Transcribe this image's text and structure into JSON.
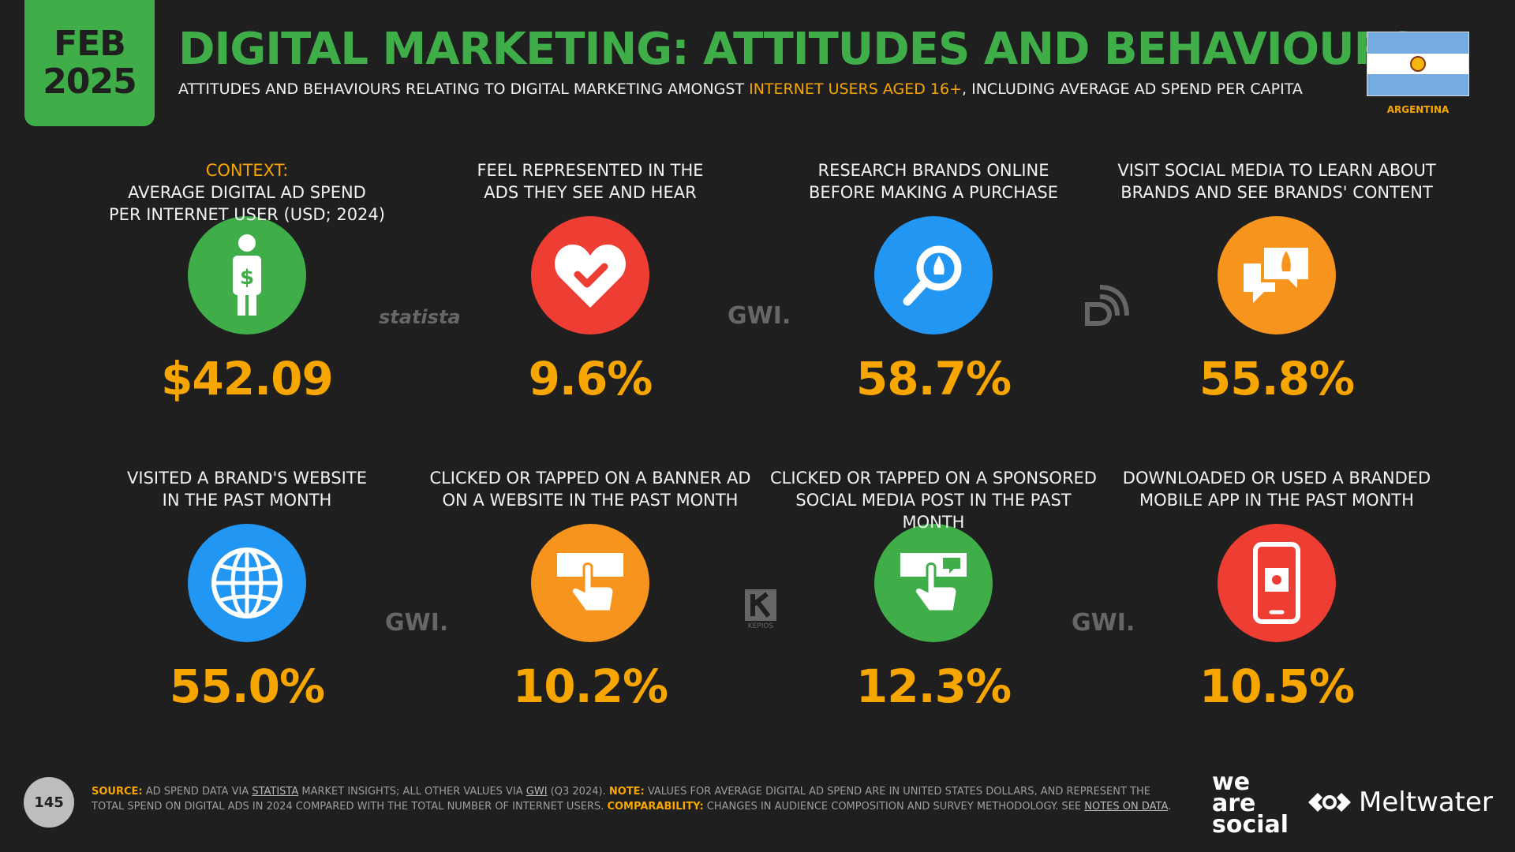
{
  "header": {
    "date_month": "FEB",
    "date_year": "2025",
    "title": "DIGITAL MARKETING: ATTITUDES AND BEHAVIOURS",
    "subtitle_pre": "ATTITUDES AND BEHAVIOURS RELATING TO DIGITAL MARKETING AMONGST ",
    "subtitle_highlight": "INTERNET USERS AGED 16+",
    "subtitle_post": ", INCLUDING AVERAGE AD SPEND PER CAPITA",
    "country": "ARGENTINA"
  },
  "tiles": [
    {
      "label_prefix": "CONTEXT:",
      "label_line1": " AVERAGE DIGITAL AD SPEND",
      "label_line2": "PER INTERNET USER (USD; 2024)",
      "value": "$42.09",
      "icon": "person-dollar-icon",
      "color": "#3fae49"
    },
    {
      "label_line1": "FEEL REPRESENTED IN THE",
      "label_line2": "ADS THEY SEE AND HEAR",
      "value": "9.6%",
      "icon": "heart-check-icon",
      "color": "#ee3d33"
    },
    {
      "label_line1": "RESEARCH BRANDS ONLINE",
      "label_line2": "BEFORE MAKING A PURCHASE",
      "value": "58.7%",
      "icon": "magnifier-icon",
      "color": "#2196f3"
    },
    {
      "label_line1": "VISIT SOCIAL MEDIA TO LEARN ABOUT",
      "label_line2": "BRANDS AND SEE BRANDS' CONTENT",
      "value": "55.8%",
      "icon": "chat-bubbles-icon",
      "color": "#f7941d"
    },
    {
      "label_line1": "VISITED A BRAND'S WEBSITE",
      "label_line2": "IN THE PAST MONTH",
      "value": "55.0%",
      "icon": "globe-icon",
      "color": "#2196f3"
    },
    {
      "label_line1": "CLICKED OR TAPPED ON A BANNER AD",
      "label_line2": "ON A WEBSITE IN THE PAST MONTH",
      "value": "10.2%",
      "icon": "tap-banner-icon",
      "color": "#f7941d"
    },
    {
      "label_line1": "CLICKED OR TAPPED ON A SPONSORED",
      "label_line2": "SOCIAL MEDIA POST IN THE PAST MONTH",
      "value": "12.3%",
      "icon": "tap-social-icon",
      "color": "#3fae49"
    },
    {
      "label_line1": "DOWNLOADED OR USED A BRANDED",
      "label_line2": "MOBILE APP IN THE PAST MONTH",
      "value": "10.5%",
      "icon": "smartphone-icon",
      "color": "#ee3d33"
    }
  ],
  "source_logos": {
    "statista": "statista",
    "gwi": "GWI.",
    "kepios": "KEPIOS"
  },
  "footer": {
    "page_number": "145",
    "source_label": "SOURCE:",
    "source_text_1": " AD SPEND DATA VIA ",
    "source_link_1": "STATISTA",
    "source_text_2": " MARKET INSIGHTS; ALL OTHER VALUES VIA ",
    "source_link_2": "GWI",
    "source_text_3": " (Q3 2024). ",
    "note_label": "NOTE:",
    "note_text": " VALUES FOR AVERAGE DIGITAL AD SPEND ARE IN UNITED STATES DOLLARS, AND REPRESENT THE TOTAL SPEND ON DIGITAL ADS IN 2024 COMPARED WITH THE TOTAL NUMBER OF INTERNET USERS. ",
    "comparability_label": "COMPARABILITY:",
    "comparability_text": " CHANGES IN AUDIENCE COMPOSITION AND SURVEY METHODOLOGY. SEE ",
    "notes_link": "NOTES ON DATA",
    "notes_end": ".",
    "brand_was_1": "we",
    "brand_was_2": "are",
    "brand_was_3": "social",
    "brand_meltwater": "Meltwater"
  }
}
